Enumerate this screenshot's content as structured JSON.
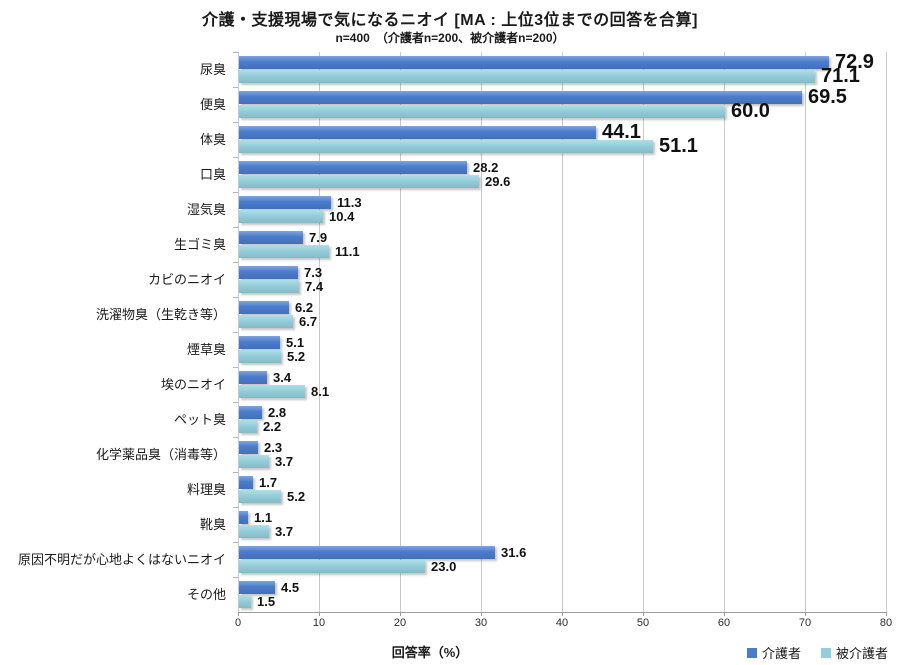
{
  "chart_data": {
    "type": "bar",
    "orientation": "horizontal",
    "title": "介護・支援現場で気になるニオイ [MA : 上位3位までの回答を合算]",
    "subtitle": "n=400　（介護者n=200、被介護者n=200）",
    "xlabel": "回答率（%）",
    "xlim": [
      0,
      80
    ],
    "xticks": [
      0,
      10,
      20,
      30,
      40,
      50,
      60,
      70,
      80
    ],
    "grid": "vertical",
    "legend_position": "bottom-right",
    "emphasized_rows": 3,
    "categories": [
      "尿臭",
      "便臭",
      "体臭",
      "口臭",
      "湿気臭",
      "生ゴミ臭",
      "カビのニオイ",
      "洗濯物臭（生乾き等）",
      "煙草臭",
      "埃のニオイ",
      "ペット臭",
      "化学薬品臭（消毒等）",
      "料理臭",
      "靴臭",
      "原因不明だが心地よくはないニオイ",
      "その他"
    ],
    "series": [
      {
        "name": "介護者",
        "color": "#4a7ccd",
        "values": [
          72.9,
          69.5,
          44.1,
          28.2,
          11.3,
          7.9,
          7.3,
          6.2,
          5.1,
          3.4,
          2.8,
          2.3,
          1.7,
          1.1,
          31.6,
          4.5
        ]
      },
      {
        "name": "被介護者",
        "color": "#93cedb",
        "values": [
          71.1,
          60.0,
          51.1,
          29.6,
          10.4,
          11.1,
          7.4,
          6.7,
          5.2,
          8.1,
          2.2,
          3.7,
          5.2,
          3.7,
          23.0,
          1.5
        ]
      }
    ],
    "colors": {
      "gridline": "#c9c9c9",
      "axis_line": "#9c9c9c",
      "text": "#1a1a1a"
    }
  }
}
